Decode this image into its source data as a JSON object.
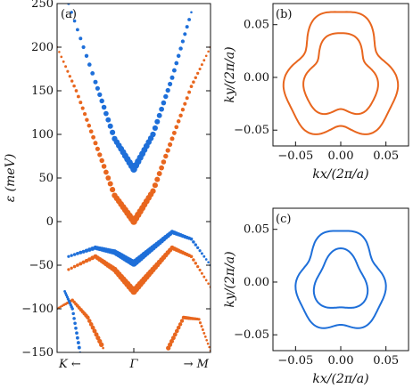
{
  "colors": {
    "orange": "#e8661e",
    "blue": "#1e6fd9",
    "axis": "#111111"
  },
  "chart_data": [
    {
      "type": "scatter",
      "panel_label": "(a)",
      "ylabel": "ε (meV)",
      "ylim": [
        -150,
        250
      ],
      "yticks": [
        -150,
        -100,
        -50,
        0,
        50,
        100,
        150,
        200,
        250
      ],
      "ytick_labels": [
        "−150",
        "−100",
        "−50",
        "0",
        "50",
        "100",
        "150",
        "200",
        "250"
      ],
      "xticks": [
        "K ←",
        "Γ",
        "→ M"
      ],
      "x_range": [
        -1,
        1
      ],
      "series": [
        {
          "color": "orange",
          "band": [
            {
              "x": -1.0,
              "y": 200
            },
            {
              "x": -0.75,
              "y": 150
            },
            {
              "x": -0.5,
              "y": 90
            },
            {
              "x": -0.25,
              "y": 30
            },
            {
              "x": 0.0,
              "y": 0
            },
            {
              "x": 0.25,
              "y": 35
            },
            {
              "x": 0.5,
              "y": 95
            },
            {
              "x": 0.75,
              "y": 155
            },
            {
              "x": 1.0,
              "y": 200
            }
          ]
        },
        {
          "color": "blue",
          "band": [
            {
              "x": -0.85,
              "y": 250
            },
            {
              "x": -0.5,
              "y": 160
            },
            {
              "x": -0.25,
              "y": 95
            },
            {
              "x": 0.0,
              "y": 60
            },
            {
              "x": 0.25,
              "y": 100
            },
            {
              "x": 0.5,
              "y": 165
            },
            {
              "x": 0.75,
              "y": 240
            }
          ]
        },
        {
          "color": "blue",
          "band": [
            {
              "x": -0.85,
              "y": -40
            },
            {
              "x": -0.5,
              "y": -30
            },
            {
              "x": -0.25,
              "y": -35
            },
            {
              "x": 0.0,
              "y": -48
            },
            {
              "x": 0.25,
              "y": -30
            },
            {
              "x": 0.5,
              "y": -12
            },
            {
              "x": 0.75,
              "y": -20
            },
            {
              "x": 1.0,
              "y": -50
            }
          ]
        },
        {
          "color": "orange",
          "band": [
            {
              "x": -0.85,
              "y": -55
            },
            {
              "x": -0.5,
              "y": -40
            },
            {
              "x": -0.25,
              "y": -55
            },
            {
              "x": 0.0,
              "y": -80
            },
            {
              "x": 0.25,
              "y": -55
            },
            {
              "x": 0.5,
              "y": -30
            },
            {
              "x": 0.75,
              "y": -40
            },
            {
              "x": 1.0,
              "y": -75
            }
          ]
        },
        {
          "color": "orange",
          "band": [
            {
              "x": -1.0,
              "y": -100
            },
            {
              "x": -0.8,
              "y": -90
            },
            {
              "x": -0.6,
              "y": -110
            },
            {
              "x": -0.4,
              "y": -145
            }
          ]
        },
        {
          "color": "orange",
          "band": [
            {
              "x": 0.45,
              "y": -145
            },
            {
              "x": 0.65,
              "y": -110
            },
            {
              "x": 0.85,
              "y": -112
            },
            {
              "x": 1.0,
              "y": -148
            }
          ]
        },
        {
          "color": "blue",
          "band": [
            {
              "x": -0.9,
              "y": -80
            },
            {
              "x": -0.8,
              "y": -100
            },
            {
              "x": -0.7,
              "y": -150
            }
          ]
        }
      ]
    },
    {
      "type": "line",
      "panel_label": "(b)",
      "xlabel": "kx/(2π/a)",
      "ylabel": "ky/(2π/a)",
      "xlim": [
        -0.075,
        0.075
      ],
      "ylim": [
        -0.065,
        0.07
      ],
      "ticks": [
        -0.05,
        0.0,
        0.05
      ],
      "tick_labels": [
        "−0.05",
        "0.00",
        "0.05"
      ],
      "color": "orange",
      "contours": [
        {
          "r0": 0.058,
          "a3": 0.008,
          "a6": 0.004
        },
        {
          "r0": 0.038,
          "a3": 0.006,
          "a6": 0.002
        }
      ]
    },
    {
      "type": "line",
      "panel_label": "(c)",
      "xlabel": "kx/(2π/a)",
      "ylabel": "ky/(2π/a)",
      "xlim": [
        -0.075,
        0.075
      ],
      "ylim": [
        -0.065,
        0.07
      ],
      "ticks": [
        -0.05,
        0.0,
        0.05
      ],
      "tick_labels": [
        "−0.05",
        "0.00",
        "0.05"
      ],
      "color": "blue",
      "contours": [
        {
          "r0": 0.047,
          "a3": 0.004,
          "a6": 0.0025
        },
        {
          "r0": 0.028,
          "a3": 0.004,
          "a6": 0.0
        }
      ]
    }
  ]
}
